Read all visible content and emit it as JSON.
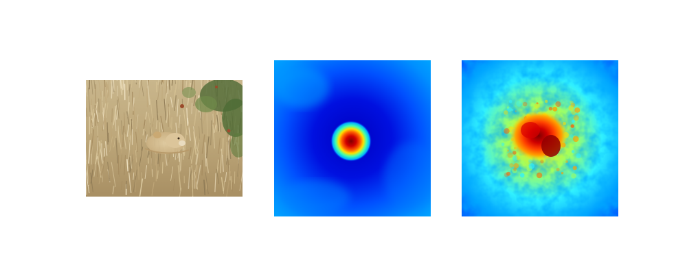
{
  "figure": {
    "panels": [
      {
        "id": "photo",
        "kind": "photograph",
        "subject": "lion-in-grass"
      },
      {
        "id": "heatmap-a",
        "kind": "saliency-heatmap",
        "colormap": "jet"
      },
      {
        "id": "heatmap-b",
        "kind": "saliency-heatmap",
        "colormap": "jet"
      }
    ],
    "colors": {
      "grass_light": "#cdb98e",
      "grass_dark": "#8f7b56",
      "foliage": "#4c6b34",
      "jet_low": "#0000c8",
      "jet_mid": "#00e0ff",
      "jet_high": "#ff0000",
      "jet_max": "#800000"
    }
  }
}
